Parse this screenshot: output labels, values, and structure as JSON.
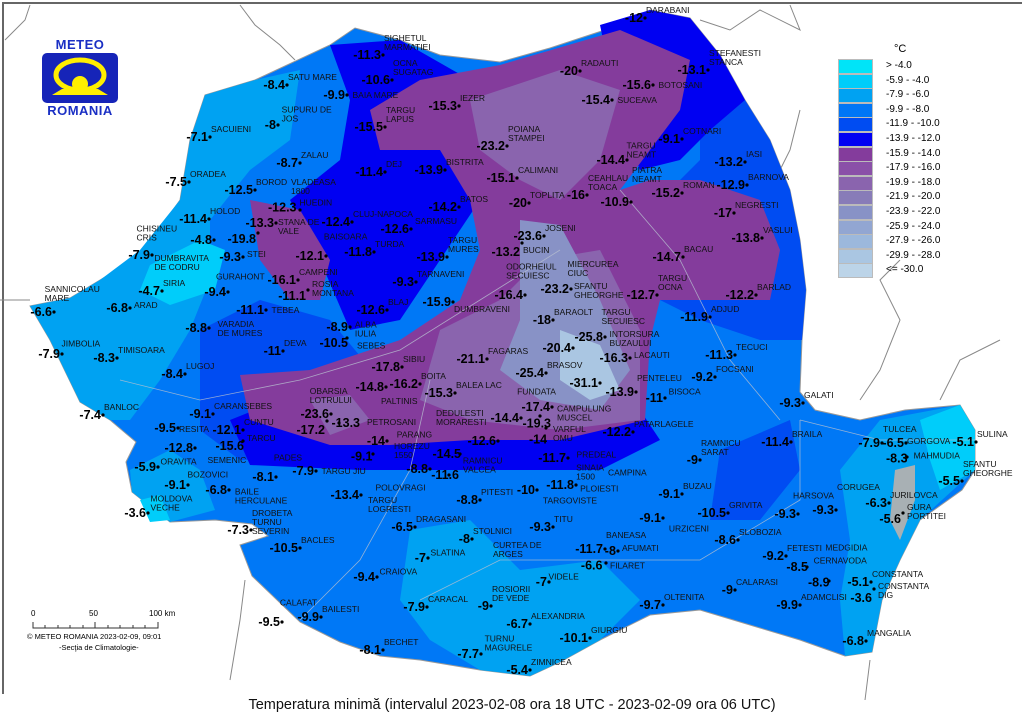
{
  "logo": {
    "top": "METEO",
    "bottom": "ROMANIA"
  },
  "title": "Temperatura minimă (intervalul 2023-02-08 ora 18 UTC - 2023-02-09 ora 06 UTC)",
  "copyright": "© METEO ROMANIA 2023-02-09, 09:01",
  "department": "-Secţia de Climatologie-",
  "scale_bar": {
    "ticks": [
      "0",
      "50",
      "100 km"
    ]
  },
  "legend": {
    "unit": "°C",
    "items": [
      {
        "label": "> -4.0",
        "color": "#00e4f8"
      },
      {
        "label": "-5.9 - -4.0",
        "color": "#00cdfa"
      },
      {
        "label": "-7.9 - -6.0",
        "color": "#00a2f2"
      },
      {
        "label": "-9.9 - -8.0",
        "color": "#0076f6"
      },
      {
        "label": "-11.9 - -10.0",
        "color": "#004cf2"
      },
      {
        "label": "-13.9 - -12.0",
        "color": "#0000f2"
      },
      {
        "label": "-15.9 - -14.0",
        "color": "#843c9c"
      },
      {
        "label": "-17.9 - -16.0",
        "color": "#8a50a8"
      },
      {
        "label": "-19.9 - -18.0",
        "color": "#8a64ae"
      },
      {
        "label": "-21.9 - -20.0",
        "color": "#887cb8"
      },
      {
        "label": "-23.9 - -22.0",
        "color": "#8892c6"
      },
      {
        "label": "-25.9 - -24.0",
        "color": "#92a6d2"
      },
      {
        "label": "-27.9 - -26.0",
        "color": "#9cb8dc"
      },
      {
        "label": "-29.9 - -28.0",
        "color": "#aac6e2"
      },
      {
        "label": "<= -30.0",
        "color": "#bcd4e8"
      }
    ]
  },
  "stations": [
    {
      "name": "SIGHETUL MARMATIEI",
      "value": "-11.3"
    },
    {
      "name": "OCNA SUGATAG",
      "value": "-10.6"
    },
    {
      "name": "SATU MARE",
      "value": "-8.4"
    },
    {
      "name": "BAIA MARE",
      "value": "-9.9"
    },
    {
      "name": "SUPURU DE JOS",
      "value": "-8"
    },
    {
      "name": "SACUIENI",
      "value": "-7.1"
    },
    {
      "name": "ZALAU",
      "value": "-8.7"
    },
    {
      "name": "TARGU LAPUS",
      "value": "-15.5"
    },
    {
      "name": "IEZER",
      "value": "-15.3"
    },
    {
      "name": "ORADEA",
      "value": "-7.5"
    },
    {
      "name": "BOROD",
      "value": "-12.5"
    },
    {
      "name": "VLADEASA 1800",
      "value": "-13.3"
    },
    {
      "name": "HUEDIN",
      "value": "-12.3"
    },
    {
      "name": "HOLOD",
      "value": "-11.4"
    },
    {
      "name": "DUMBRAVITA DE CODRU",
      "value": "-4.8"
    },
    {
      "name": "STANA DE VALE",
      "value": "-19.8"
    },
    {
      "name": "STEI",
      "value": "-9.3"
    },
    {
      "name": "CHISINEU CRIS",
      "value": "-7.9"
    },
    {
      "name": "SIRIA",
      "value": "-4.7"
    },
    {
      "name": "GURAHONT",
      "value": "-9.4"
    },
    {
      "name": "SANNICOLAU MARE",
      "value": "-6.6"
    },
    {
      "name": "ARAD",
      "value": "-6.8"
    },
    {
      "name": "VARADIA DE MURES",
      "value": "-8.8"
    },
    {
      "name": "TEBEA",
      "value": "-11.1"
    },
    {
      "name": "CAMPENI",
      "value": "-16.1"
    },
    {
      "name": "ROSIA MONTANA",
      "value": "-11.1"
    },
    {
      "name": "BAISOARA",
      "value": "-12.1"
    },
    {
      "name": "CLUJ-NAPOCA",
      "value": "-12.4"
    },
    {
      "name": "DEJ",
      "value": "-11.4"
    },
    {
      "name": "BISTRITA",
      "value": "-13.9"
    },
    {
      "name": "BATOS",
      "value": "-14.2"
    },
    {
      "name": "SARMASU",
      "value": "-12.6"
    },
    {
      "name": "TURDA",
      "value": "-11.8"
    },
    {
      "name": "TARGU MURES",
      "value": "-13.9"
    },
    {
      "name": "TARNAVENI",
      "value": "-9.3"
    },
    {
      "name": "DUMBRAVENI",
      "value": "-15.9"
    },
    {
      "name": "BLAJ",
      "value": "-12.6"
    },
    {
      "name": "ALBA IULIA",
      "value": "-8.9"
    },
    {
      "name": "SEBES",
      "value": "-10.5"
    },
    {
      "name": "DEVA",
      "value": "-11"
    },
    {
      "name": "JIMBOLIA",
      "value": "-7.9"
    },
    {
      "name": "TIMISOARA",
      "value": "-8.3"
    },
    {
      "name": "LUGOJ",
      "value": "-8.4"
    },
    {
      "name": "BANLOC",
      "value": "-7.4"
    },
    {
      "name": "CARANSEBES",
      "value": "-9.1"
    },
    {
      "name": "RESITA",
      "value": "-9.5"
    },
    {
      "name": "CUNTU",
      "value": "-12.1"
    },
    {
      "name": "TARCU",
      "value": "-15.6"
    },
    {
      "name": "SEMENIC",
      "value": "-12.8"
    },
    {
      "name": "ORAVITA",
      "value": "-5.9"
    },
    {
      "name": "BOZOVICI",
      "value": "-9.1"
    },
    {
      "name": "BAILE HERCULANE",
      "value": "-6.8"
    },
    {
      "name": "MOLDOVA VECHE",
      "value": "-3.6"
    },
    {
      "name": "DROBETA TURNU SEVERIN",
      "value": "-7.3"
    },
    {
      "name": "PADES",
      "value": "-8.1"
    },
    {
      "name": "TARGU JIU",
      "value": "-7.9"
    },
    {
      "name": "BACLES",
      "value": "-10.5"
    },
    {
      "name": "CRAIOVA",
      "value": "-9.4"
    },
    {
      "name": "CALAFAT",
      "value": "-9.5"
    },
    {
      "name": "BAILESTI",
      "value": "-9.9"
    },
    {
      "name": "BECHET",
      "value": "-8.1"
    },
    {
      "name": "SIBIU",
      "value": "-17.8"
    },
    {
      "name": "PALTINIS",
      "value": "-14.8"
    },
    {
      "name": "OBARSIA LOTRULUI",
      "value": "-23.6"
    },
    {
      "name": "PETROSANI",
      "value": "-17.2"
    },
    {
      "name": "PARANG",
      "value": "-13.3"
    },
    {
      "name": "HOREZU 1550",
      "value": "-14"
    },
    {
      "name": "POLOVRAGI",
      "value": "-9.1"
    },
    {
      "name": "TARGU LOGRESTI",
      "value": "-13.4"
    },
    {
      "name": "DRAGASANI",
      "value": "-6.5"
    },
    {
      "name": "RAMNICU VALCEA",
      "value": "-8.8"
    },
    {
      "name": "DEDULESTI MORARESTI",
      "value": "-11.6"
    },
    {
      "name": "BOITA",
      "value": "-16.2"
    },
    {
      "name": "BALEA LAC",
      "value": "-15.3"
    },
    {
      "name": "FAGARAS",
      "value": "-21.1"
    },
    {
      "name": "CURTEA DE ARGES",
      "value": "-14.5"
    },
    {
      "name": "CAMPULUNG MUSCEL",
      "value": "-12.6"
    },
    {
      "name": "FUNDATA",
      "value": "-14.4"
    },
    {
      "name": "VARFUL OMU",
      "value": "-17.4"
    },
    {
      "name": "PREDEAL",
      "value": "-19.3"
    },
    {
      "name": "SINAIA 1500",
      "value": "-14"
    },
    {
      "name": "CAMPINA",
      "value": "-11.7"
    },
    {
      "name": "TARGOVISTE",
      "value": "-10"
    },
    {
      "name": "PLOIESTI",
      "value": "-11.8"
    },
    {
      "name": "PITESTI",
      "value": "-8.8"
    },
    {
      "name": "STOLNICI",
      "value": "-8"
    },
    {
      "name": "SLATINA",
      "value": "-7"
    },
    {
      "name": "TITU",
      "value": "-9.3"
    },
    {
      "name": "BANEASA",
      "value": "-11.7"
    },
    {
      "name": "AFUMATI",
      "value": "-8"
    },
    {
      "name": "FILARET",
      "value": "-6.6"
    },
    {
      "name": "VIDELE",
      "value": "-7"
    },
    {
      "name": "ROSIORII DE VEDE",
      "value": "-9"
    },
    {
      "name": "CARACAL",
      "value": "-7.9"
    },
    {
      "name": "ALEXANDRIA",
      "value": "-6.7"
    },
    {
      "name": "TURNU MAGURELE",
      "value": "-7.7"
    },
    {
      "name": "ZIMNICEA",
      "value": "-5.4"
    },
    {
      "name": "GIURGIU",
      "value": "-10.1"
    },
    {
      "name": "OLTENITA",
      "value": "-9.7"
    },
    {
      "name": "CALARASI",
      "value": "-9"
    },
    {
      "name": "ADAMCLISI",
      "value": "-9.9"
    },
    {
      "name": "FETESTI",
      "value": "-9.2"
    },
    {
      "name": "CERNAVODA",
      "value": "-8.5"
    },
    {
      "name": "MEDGIDIA",
      "value": "-8.9"
    },
    {
      "name": "CONSTANTA",
      "value": "-5.1"
    },
    {
      "name": "CONSTANTA DIG",
      "value": "-3.6"
    },
    {
      "name": "MANGALIA",
      "value": "-6.8"
    },
    {
      "name": "URZICENI",
      "value": "-9.1"
    },
    {
      "name": "GRIVITA",
      "value": "-10.5"
    },
    {
      "name": "SLOBOZIA",
      "value": "-8.6"
    },
    {
      "name": "HARSOVA",
      "value": "-9.3"
    },
    {
      "name": "CORUGEA",
      "value": "-9.3"
    },
    {
      "name": "JURILOVCA",
      "value": "-6.3"
    },
    {
      "name": "GURA PORTITEI",
      "value": "-5.6"
    },
    {
      "name": "TULCEA",
      "value": "-7.9"
    },
    {
      "name": "GORGOVA",
      "value": "-6.5"
    },
    {
      "name": "MAHMUDIA",
      "value": "-8.3"
    },
    {
      "name": "SULINA",
      "value": "-5.1"
    },
    {
      "name": "SFANTU GHEORGHE",
      "value": "-5.5"
    },
    {
      "name": "BRAILA",
      "value": "-11.4"
    },
    {
      "name": "GALATI",
      "value": "-9.3"
    },
    {
      "name": "BUZAU",
      "value": "-9.1"
    },
    {
      "name": "RAMNICU SARAT",
      "value": "-9"
    },
    {
      "name": "FOCSANI",
      "value": "-9.2"
    },
    {
      "name": "TECUCI",
      "value": "-11.3"
    },
    {
      "name": "BISOCA",
      "value": "-11"
    },
    {
      "name": "PATARLAGELE",
      "value": "-12.2"
    },
    {
      "name": "PENTELEU",
      "value": "-13.9"
    },
    {
      "name": "INTORSURA BUZAULUI",
      "value": "-31.1"
    },
    {
      "name": "LACAUTI",
      "value": "-16.3"
    },
    {
      "name": "TARGU SECUIESC",
      "value": "-25.8"
    },
    {
      "name": "SFANTU GHEORGHE",
      "value": "-20.4"
    },
    {
      "name": "BRASOV",
      "value": "-25.4"
    },
    {
      "name": "BARAOLT",
      "value": "-18"
    },
    {
      "name": "MIERCUREA CIUC",
      "value": "-23.2"
    },
    {
      "name": "ODORHEIUL SECUIESC",
      "value": "-16.4"
    },
    {
      "name": "JOSENI",
      "value": "-23.6"
    },
    {
      "name": "BUCIN",
      "value": "-13.2"
    },
    {
      "name": "TOPLITA",
      "value": "-20"
    },
    {
      "name": "CALIMANI",
      "value": "-15.1"
    },
    {
      "name": "POIANA STAMPEI",
      "value": "-23.2"
    },
    {
      "name": "RADAUTI",
      "value": "-20"
    },
    {
      "name": "DARABANI",
      "value": "-12"
    },
    {
      "name": "SUCEAVA",
      "value": "-15.4"
    },
    {
      "name": "BOTOSANI",
      "value": "-15.6"
    },
    {
      "name": "STEFANESTI STANCA",
      "value": "-13.1"
    },
    {
      "name": "COTNARI",
      "value": "-9.1"
    },
    {
      "name": "TARGU NEAMT",
      "value": "-14.4"
    },
    {
      "name": "CEAHLAU TOACA",
      "value": "-16"
    },
    {
      "name": "PIATRA NEAMT",
      "value": "-10.9"
    },
    {
      "name": "ROMAN",
      "value": "-15.2"
    },
    {
      "name": "IASI",
      "value": "-13.2"
    },
    {
      "name": "BARNOVA",
      "value": "-12.9"
    },
    {
      "name": "NEGRESTI",
      "value": "-17"
    },
    {
      "name": "VASLUI",
      "value": "-13.8"
    },
    {
      "name": "BACAU",
      "value": "-14.7"
    },
    {
      "name": "TARGU OCNA",
      "value": "-12.7"
    },
    {
      "name": "BARLAD",
      "value": "-12.2"
    },
    {
      "name": "ADJUD",
      "value": "-11.9"
    }
  ]
}
